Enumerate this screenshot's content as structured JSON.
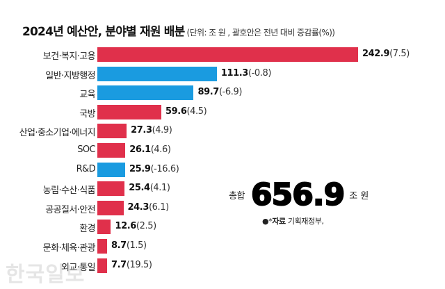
{
  "title": {
    "main": "2024년 예산안, 분야별 재원 배분",
    "sub": "(단위: 조 원 , 괄호안은 전년 대비 증감률(%))"
  },
  "colors": {
    "increase": "#E0304B",
    "decrease": "#1A9BE0"
  },
  "chart_data": {
    "type": "bar",
    "orientation": "horizontal",
    "title": "2024년 예산안, 분야별 재원 배분",
    "subtitle": "(단위: 조 원 , 괄호안은 전년 대비 증감률(%))",
    "xlabel": "",
    "ylabel": "",
    "categories": [
      "보건·복지·고용",
      "일반·지방행정",
      "교육",
      "국방",
      "산업·중소기업·에너지",
      "SOC",
      "R&D",
      "농림·수산·식품",
      "공공질서·안전",
      "환경",
      "문화·체육·관광",
      "외교·통일"
    ],
    "series": [
      {
        "name": "예산(조 원)",
        "values": [
          242.9,
          111.3,
          89.7,
          59.6,
          27.3,
          26.1,
          25.9,
          25.4,
          24.3,
          12.6,
          8.7,
          7.7
        ]
      },
      {
        "name": "전년 대비 증감률(%)",
        "values": [
          7.5,
          -0.8,
          -6.9,
          4.5,
          4.9,
          4.6,
          -16.6,
          4.1,
          6.1,
          2.5,
          1.5,
          19.5
        ]
      }
    ],
    "legend": "none (red = increase, blue = decrease)",
    "grid": false,
    "annotations": [
      "총합 656.9조 원",
      "●*자료 기획재정부,"
    ]
  },
  "rows": [
    {
      "label": "보건·복지·고용",
      "value": "242.9",
      "change": "(7.5)",
      "v": 242.9,
      "color": "#E0304B"
    },
    {
      "label": "일반·지방행정",
      "value": "111.3",
      "change": "(-0.8)",
      "v": 111.3,
      "color": "#1A9BE0"
    },
    {
      "label": "교육",
      "value": "89.7",
      "change": "(-6.9)",
      "v": 89.7,
      "color": "#1A9BE0"
    },
    {
      "label": "국방",
      "value": "59.6",
      "change": "(4.5)",
      "v": 59.6,
      "color": "#E0304B"
    },
    {
      "label": "산업·중소기업·에너지",
      "value": "27.3",
      "change": "(4.9)",
      "v": 27.3,
      "color": "#E0304B"
    },
    {
      "label": "SOC",
      "value": "26.1",
      "change": "(4.6)",
      "v": 26.1,
      "color": "#E0304B"
    },
    {
      "label": "R&D",
      "value": "25.9",
      "change": "(-16.6)",
      "v": 25.9,
      "color": "#1A9BE0"
    },
    {
      "label": "농림·수산·식품",
      "value": "25.4",
      "change": "(4.1)",
      "v": 25.4,
      "color": "#E0304B"
    },
    {
      "label": "공공질서·안전",
      "value": "24.3",
      "change": "(6.1)",
      "v": 24.3,
      "color": "#E0304B"
    },
    {
      "label": "환경",
      "value": "12.6",
      "change": "(2.5)",
      "v": 12.6,
      "color": "#E0304B"
    },
    {
      "label": "문화·체육·관광",
      "value": "8.7",
      "change": "(1.5)",
      "v": 8.7,
      "color": "#E0304B"
    },
    {
      "label": "외교·통일",
      "value": "7.7",
      "change": "(19.5)",
      "v": 7.7,
      "color": "#E0304B"
    }
  ],
  "total": {
    "label": "총합",
    "value": "656.9",
    "unit": "조 원"
  },
  "source": {
    "prefix": "●*",
    "bold": "자료",
    "text": " 기획재정부,"
  },
  "watermark": "한국일보"
}
